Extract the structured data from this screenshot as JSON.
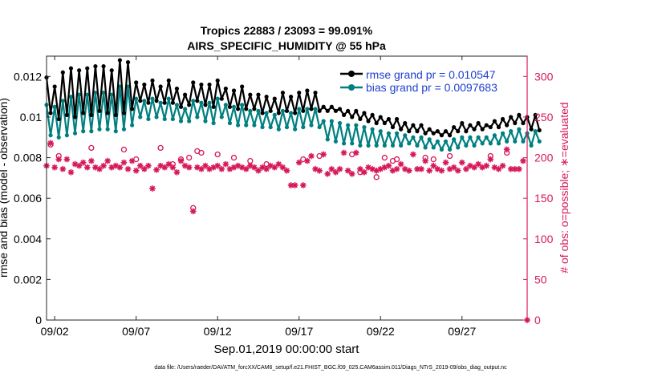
{
  "chart_data": {
    "type": "line",
    "title": "Tropics 22883 / 23093 = 99.091%",
    "subtitle": "AIRS_SPECIFIC_HUMIDITY @ 55 hPa",
    "xlabel": "Sep.01,2019 00:00:00 start",
    "ylabel_left": "rmse and bias (model - observation)",
    "ylabel_right": "# of obs: o=possible; ∗=evaluated",
    "footer": "data file: /Users/raeder/DAI/ATM_forcXX/CAM6_setup/f.e21.FHIST_BGC.f09_025.CAM6assim.011/Diags_NTrS_2019-09/obs_diag_output.nc",
    "xlim": [
      1.5,
      31.0
    ],
    "ylim_left": [
      0,
      0.013
    ],
    "ylim_right": [
      0,
      325
    ],
    "x_ticks": [
      {
        "x": 2,
        "label": "09/02"
      },
      {
        "x": 7,
        "label": "09/07"
      },
      {
        "x": 12,
        "label": "09/12"
      },
      {
        "x": 17,
        "label": "09/17"
      },
      {
        "x": 22,
        "label": "09/22"
      },
      {
        "x": 27,
        "label": "09/27"
      }
    ],
    "y_left_ticks": [
      {
        "v": 0,
        "label": "0"
      },
      {
        "v": 0.002,
        "label": "0.002"
      },
      {
        "v": 0.004,
        "label": "0.004"
      },
      {
        "v": 0.006,
        "label": "0.006"
      },
      {
        "v": 0.008,
        "label": "0.008"
      },
      {
        "v": 0.01,
        "label": "0.01"
      },
      {
        "v": 0.012,
        "label": "0.012"
      }
    ],
    "y_right_ticks": [
      {
        "v": 0,
        "label": "0"
      },
      {
        "v": 50,
        "label": "50"
      },
      {
        "v": 100,
        "label": "100"
      },
      {
        "v": 150,
        "label": "150"
      },
      {
        "v": 200,
        "label": "200"
      },
      {
        "v": 250,
        "label": "250"
      },
      {
        "v": 300,
        "label": "300"
      }
    ],
    "legend": [
      {
        "name": "rmse grand pr = 0.010547",
        "color": "#000000"
      },
      {
        "name": "bias grand pr = 0.0097683",
        "color": "#008080"
      }
    ],
    "colors": {
      "rmse": "#000000",
      "bias": "#008080",
      "obs": "#d6185a",
      "legend_text": "#1f3fd0"
    },
    "x_start": 1.5,
    "x_step": 0.25,
    "series": [
      {
        "name": "rmse",
        "values": [
          0.01195,
          0.0102,
          0.0115,
          0.0099,
          0.0122,
          0.0101,
          0.0124,
          0.01,
          0.0123,
          0.0102,
          0.0124,
          0.0101,
          0.0125,
          0.0103,
          0.0125,
          0.0102,
          0.0123,
          0.0101,
          0.0128,
          0.0102,
          0.0127,
          0.0104,
          0.0117,
          0.0108,
          0.0116,
          0.0107,
          0.0118,
          0.0108,
          0.0115,
          0.0107,
          0.0118,
          0.0107,
          0.0114,
          0.0105,
          0.0111,
          0.0106,
          0.0117,
          0.0108,
          0.0116,
          0.0106,
          0.0116,
          0.0105,
          0.0118,
          0.0109,
          0.0114,
          0.0105,
          0.0113,
          0.0104,
          0.0115,
          0.0104,
          0.0111,
          0.0104,
          0.0111,
          0.0102,
          0.011,
          0.0103,
          0.0109,
          0.0102,
          0.0112,
          0.0103,
          0.011,
          0.0102,
          0.0112,
          0.0103,
          0.0113,
          0.0104,
          0.0112,
          0.0103,
          0.0105,
          0.0103,
          0.0105,
          0.0103,
          0.0104,
          0.0101,
          0.0103,
          0.01,
          0.0103,
          0.0099,
          0.0102,
          0.0098,
          0.0101,
          0.0097,
          0.01,
          0.0097,
          0.0099,
          0.0095,
          0.0099,
          0.0094,
          0.0097,
          0.0093,
          0.0096,
          0.0093,
          0.0096,
          0.0092,
          0.0094,
          0.0092,
          0.0093,
          0.0091,
          0.0093,
          0.0091,
          0.0095,
          0.0093,
          0.0097,
          0.0093,
          0.0096,
          0.0094,
          0.0097,
          0.0094,
          0.0096,
          0.0095,
          0.0098,
          0.0095,
          0.0099,
          0.0096,
          0.01,
          0.0097,
          0.0101,
          0.0097,
          0.01,
          0.0094,
          0.0101,
          0.00935
        ],
        "color": "#000000"
      },
      {
        "name": "bias",
        "values": [
          0.0106,
          0.0091,
          0.0105,
          0.009,
          0.0108,
          0.0091,
          0.011,
          0.0092,
          0.0111,
          0.0093,
          0.0111,
          0.0093,
          0.0112,
          0.0094,
          0.0112,
          0.0094,
          0.0111,
          0.0093,
          0.0115,
          0.0094,
          0.0115,
          0.0096,
          0.0109,
          0.01,
          0.0108,
          0.0099,
          0.0109,
          0.01,
          0.0107,
          0.0099,
          0.0109,
          0.0099,
          0.0106,
          0.0098,
          0.0104,
          0.0098,
          0.0108,
          0.01,
          0.0107,
          0.0098,
          0.0107,
          0.0097,
          0.0109,
          0.01,
          0.0106,
          0.0097,
          0.0105,
          0.0096,
          0.0106,
          0.0096,
          0.0103,
          0.0096,
          0.0103,
          0.0095,
          0.0102,
          0.0095,
          0.0101,
          0.0094,
          0.0103,
          0.0095,
          0.0102,
          0.0094,
          0.0104,
          0.0095,
          0.0104,
          0.0096,
          0.0104,
          0.0095,
          0.0098,
          0.0089,
          0.0098,
          0.0088,
          0.0097,
          0.0087,
          0.0096,
          0.0087,
          0.0096,
          0.0086,
          0.0095,
          0.0086,
          0.0094,
          0.0086,
          0.0093,
          0.0086,
          0.0092,
          0.0086,
          0.0092,
          0.0086,
          0.0091,
          0.0087,
          0.009,
          0.0086,
          0.009,
          0.0085,
          0.0089,
          0.0085,
          0.0088,
          0.0084,
          0.0088,
          0.0084,
          0.0089,
          0.0085,
          0.009,
          0.0086,
          0.009,
          0.0086,
          0.009,
          0.0087,
          0.009,
          0.0087,
          0.0091,
          0.0087,
          0.0092,
          0.0088,
          0.0093,
          0.0088,
          0.0094,
          0.0088,
          0.0092,
          0.0086,
          0.0093,
          0.0088
        ],
        "color": "#008080"
      }
    ],
    "obs_evaluated": [
      {
        "x": 1.5,
        "v": 190
      },
      {
        "x": 1.75,
        "v": 218
      },
      {
        "x": 2.0,
        "v": 188
      },
      {
        "x": 2.25,
        "v": 198
      },
      {
        "x": 2.5,
        "v": 186
      },
      {
        "x": 2.75,
        "v": 198
      },
      {
        "x": 3.0,
        "v": 182
      },
      {
        "x": 3.25,
        "v": 192
      },
      {
        "x": 3.5,
        "v": 190
      },
      {
        "x": 3.75,
        "v": 194
      },
      {
        "x": 4.0,
        "v": 188
      },
      {
        "x": 4.25,
        "v": 196
      },
      {
        "x": 4.5,
        "v": 188
      },
      {
        "x": 4.75,
        "v": 186
      },
      {
        "x": 5.0,
        "v": 190
      },
      {
        "x": 5.25,
        "v": 196
      },
      {
        "x": 5.5,
        "v": 188
      },
      {
        "x": 5.75,
        "v": 190
      },
      {
        "x": 6.0,
        "v": 188
      },
      {
        "x": 6.25,
        "v": 194
      },
      {
        "x": 6.5,
        "v": 186
      },
      {
        "x": 6.75,
        "v": 196
      },
      {
        "x": 7.0,
        "v": 184
      },
      {
        "x": 7.25,
        "v": 190
      },
      {
        "x": 7.5,
        "v": 186
      },
      {
        "x": 7.75,
        "v": 190
      },
      {
        "x": 8.0,
        "v": 162
      },
      {
        "x": 8.25,
        "v": 185
      },
      {
        "x": 8.5,
        "v": 190
      },
      {
        "x": 8.75,
        "v": 188
      },
      {
        "x": 9.0,
        "v": 192
      },
      {
        "x": 9.25,
        "v": 188
      },
      {
        "x": 9.5,
        "v": 182
      },
      {
        "x": 9.75,
        "v": 196
      },
      {
        "x": 10.0,
        "v": 190
      },
      {
        "x": 10.25,
        "v": 188
      },
      {
        "x": 10.5,
        "v": 134
      },
      {
        "x": 10.75,
        "v": 188
      },
      {
        "x": 11.0,
        "v": 186
      },
      {
        "x": 11.25,
        "v": 190
      },
      {
        "x": 11.5,
        "v": 186
      },
      {
        "x": 11.75,
        "v": 188
      },
      {
        "x": 12.0,
        "v": 190
      },
      {
        "x": 12.25,
        "v": 186
      },
      {
        "x": 12.5,
        "v": 192
      },
      {
        "x": 12.75,
        "v": 186
      },
      {
        "x": 13.0,
        "v": 188
      },
      {
        "x": 13.25,
        "v": 190
      },
      {
        "x": 13.5,
        "v": 188
      },
      {
        "x": 13.75,
        "v": 186
      },
      {
        "x": 14.0,
        "v": 190
      },
      {
        "x": 14.25,
        "v": 188
      },
      {
        "x": 14.5,
        "v": 184
      },
      {
        "x": 14.75,
        "v": 188
      },
      {
        "x": 15.0,
        "v": 186
      },
      {
        "x": 15.25,
        "v": 190
      },
      {
        "x": 15.5,
        "v": 188
      },
      {
        "x": 15.75,
        "v": 192
      },
      {
        "x": 16.0,
        "v": 188
      },
      {
        "x": 16.25,
        "v": 184
      },
      {
        "x": 16.5,
        "v": 166
      },
      {
        "x": 16.75,
        "v": 166
      },
      {
        "x": 17.0,
        "v": 194
      },
      {
        "x": 17.25,
        "v": 166
      },
      {
        "x": 17.5,
        "v": 196
      },
      {
        "x": 17.75,
        "v": 202
      },
      {
        "x": 18.0,
        "v": 186
      },
      {
        "x": 18.25,
        "v": 184
      },
      {
        "x": 18.5,
        "v": 204
      },
      {
        "x": 18.75,
        "v": 180
      },
      {
        "x": 19.0,
        "v": 186
      },
      {
        "x": 19.25,
        "v": 182
      },
      {
        "x": 19.5,
        "v": 186
      },
      {
        "x": 19.75,
        "v": 206
      },
      {
        "x": 20.0,
        "v": 184
      },
      {
        "x": 20.25,
        "v": 180
      },
      {
        "x": 20.5,
        "v": 206
      },
      {
        "x": 20.75,
        "v": 186
      },
      {
        "x": 21.0,
        "v": 182
      },
      {
        "x": 21.25,
        "v": 188
      },
      {
        "x": 21.5,
        "v": 186
      },
      {
        "x": 21.75,
        "v": 184
      },
      {
        "x": 22.0,
        "v": 186
      },
      {
        "x": 22.25,
        "v": 188
      },
      {
        "x": 22.5,
        "v": 190
      },
      {
        "x": 22.75,
        "v": 184
      },
      {
        "x": 23.0,
        "v": 186
      },
      {
        "x": 23.25,
        "v": 192
      },
      {
        "x": 23.5,
        "v": 186
      },
      {
        "x": 23.75,
        "v": 184
      },
      {
        "x": 24.0,
        "v": 204
      },
      {
        "x": 24.25,
        "v": 186
      },
      {
        "x": 24.5,
        "v": 186
      },
      {
        "x": 24.75,
        "v": 196
      },
      {
        "x": 25.0,
        "v": 184
      },
      {
        "x": 25.25,
        "v": 190
      },
      {
        "x": 25.5,
        "v": 186
      },
      {
        "x": 25.75,
        "v": 184
      },
      {
        "x": 26.0,
        "v": 194
      },
      {
        "x": 26.25,
        "v": 186
      },
      {
        "x": 26.5,
        "v": 188
      },
      {
        "x": 26.75,
        "v": 184
      },
      {
        "x": 27.0,
        "v": 194
      },
      {
        "x": 27.25,
        "v": 186
      },
      {
        "x": 27.5,
        "v": 190
      },
      {
        "x": 27.75,
        "v": 188
      },
      {
        "x": 28.0,
        "v": 192
      },
      {
        "x": 28.25,
        "v": 188
      },
      {
        "x": 28.5,
        "v": 190
      },
      {
        "x": 28.75,
        "v": 198
      },
      {
        "x": 29.0,
        "v": 188
      },
      {
        "x": 29.25,
        "v": 186
      },
      {
        "x": 29.5,
        "v": 190
      },
      {
        "x": 29.75,
        "v": 210
      },
      {
        "x": 30.0,
        "v": 186
      },
      {
        "x": 30.25,
        "v": 186
      },
      {
        "x": 30.5,
        "v": 186
      },
      {
        "x": 30.75,
        "v": 196
      },
      {
        "x": 31.0,
        "v": 0
      }
    ],
    "obs_possible": [
      {
        "x": 1.75,
        "v": 216
      },
      {
        "x": 2.25,
        "v": 202
      },
      {
        "x": 4.25,
        "v": 212
      },
      {
        "x": 6.25,
        "v": 210
      },
      {
        "x": 7.0,
        "v": 198
      },
      {
        "x": 8.5,
        "v": 212
      },
      {
        "x": 9.25,
        "v": 192
      },
      {
        "x": 9.75,
        "v": 198
      },
      {
        "x": 10.25,
        "v": 200
      },
      {
        "x": 10.5,
        "v": 138
      },
      {
        "x": 10.75,
        "v": 208
      },
      {
        "x": 11.0,
        "v": 206
      },
      {
        "x": 12.0,
        "v": 204
      },
      {
        "x": 13.0,
        "v": 200
      },
      {
        "x": 14.0,
        "v": 196
      },
      {
        "x": 15.0,
        "v": 192
      },
      {
        "x": 17.25,
        "v": 198
      },
      {
        "x": 18.25,
        "v": 202
      },
      {
        "x": 20.25,
        "v": 204
      },
      {
        "x": 20.75,
        "v": 182
      },
      {
        "x": 21.75,
        "v": 176
      },
      {
        "x": 22.25,
        "v": 200
      },
      {
        "x": 22.75,
        "v": 196
      },
      {
        "x": 23.0,
        "v": 198
      },
      {
        "x": 24.75,
        "v": 200
      },
      {
        "x": 25.25,
        "v": 198
      },
      {
        "x": 26.25,
        "v": 202
      },
      {
        "x": 28.75,
        "v": 202
      },
      {
        "x": 29.75,
        "v": 206
      }
    ]
  }
}
